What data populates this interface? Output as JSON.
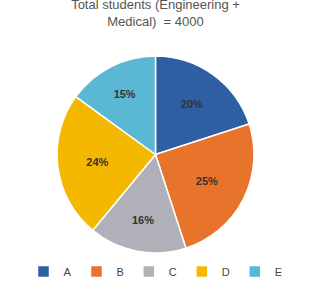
{
  "chart_data": {
    "type": "pie",
    "title": "Total students (Engineering +\nMedical)  = 4000",
    "categories": [
      "A",
      "B",
      "C",
      "D",
      "E"
    ],
    "values": [
      20,
      25,
      16,
      24,
      15
    ],
    "value_labels": [
      "20%",
      "25%",
      "16%",
      "24%",
      "15%"
    ],
    "colors": [
      "#2E5FA3",
      "#E8732A",
      "#B0B0B8",
      "#F5B800",
      "#5BB8D4"
    ],
    "data_labels": true,
    "legend": "bottom"
  }
}
